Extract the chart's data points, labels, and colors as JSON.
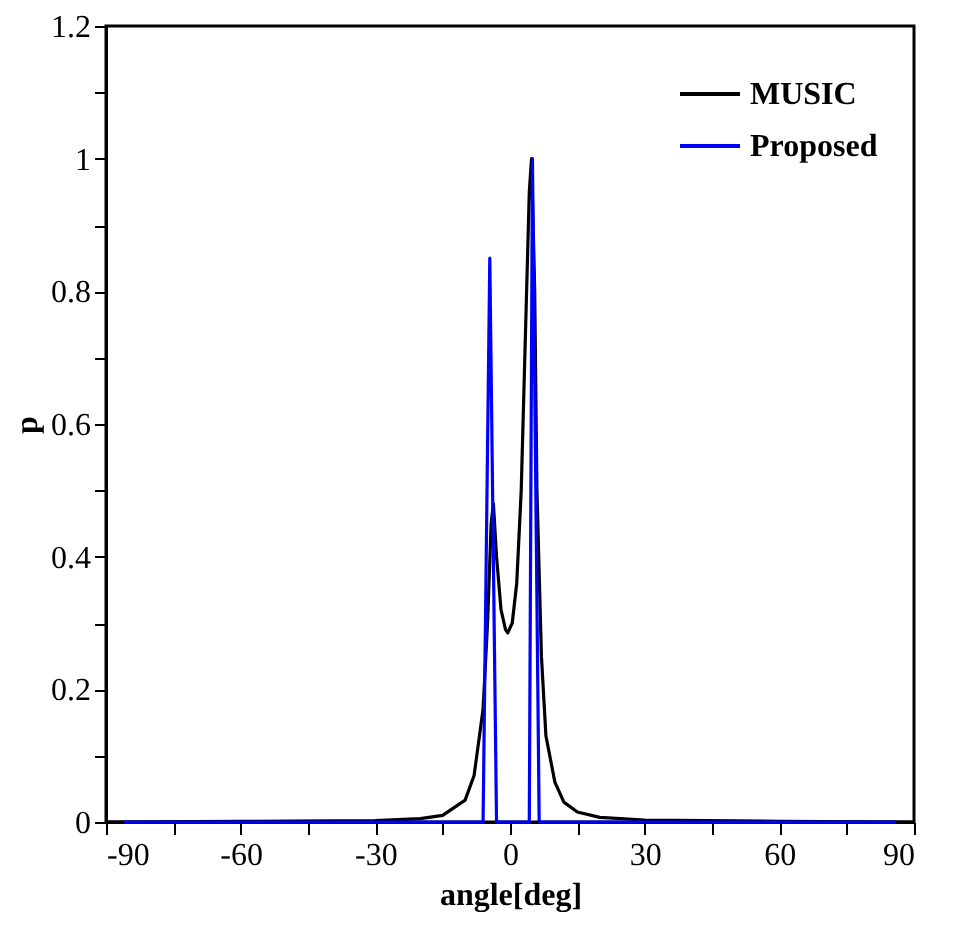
{
  "chart_data": {
    "type": "line",
    "xlabel": "angle[deg]",
    "ylabel": "p",
    "xlim": [
      -90,
      90
    ],
    "ylim": [
      0,
      1.2
    ],
    "xticks": [
      -90,
      {
        "value": -75,
        "label": null
      },
      -60,
      {
        "value": -45,
        "label": null
      },
      -30,
      {
        "value": -15,
        "label": null
      },
      0,
      {
        "value": 15,
        "label": null
      },
      30,
      {
        "value": 45,
        "label": null
      },
      60,
      {
        "value": 75,
        "label": null
      },
      90
    ],
    "yticks": [
      0,
      {
        "value": 0.1,
        "label": null
      },
      0.2,
      {
        "value": 0.3,
        "label": null
      },
      0.4,
      {
        "value": 0.5,
        "label": null
      },
      0.6,
      {
        "value": 0.7,
        "label": null
      },
      0.8,
      {
        "value": 0.9,
        "label": null
      },
      1,
      {
        "value": 1.1,
        "label": null
      },
      1.2
    ],
    "grid": false,
    "legend": "top right",
    "line_style": "solid",
    "marker": "none",
    "series": [
      {
        "name": "MUSIC",
        "color": "#000000",
        "x": [
          -90,
          -60,
          -30,
          -20,
          -15,
          -10,
          -8,
          -6,
          -5,
          -4.2,
          -3.7,
          -3,
          -2,
          -1,
          -0.5,
          0.5,
          1.5,
          2.5,
          3.5,
          4.3,
          4.8,
          5.5,
          6,
          7,
          8,
          10,
          12,
          15,
          20,
          30,
          60,
          90
        ],
        "values": [
          0,
          0.001,
          0.002,
          0.005,
          0.01,
          0.033,
          0.07,
          0.17,
          0.3,
          0.45,
          0.48,
          0.4,
          0.32,
          0.29,
          0.285,
          0.3,
          0.36,
          0.5,
          0.75,
          0.95,
          1.0,
          0.8,
          0.5,
          0.25,
          0.13,
          0.06,
          0.03,
          0.015,
          0.007,
          0.003,
          0.001,
          0
        ]
      },
      {
        "name": "Proposed",
        "color": "#0000ff",
        "x": [
          -86,
          -6,
          -4.5,
          -3,
          4.3,
          5,
          6.5,
          86
        ],
        "values": [
          0,
          0,
          0.85,
          0,
          0,
          1,
          0,
          0
        ]
      }
    ]
  }
}
